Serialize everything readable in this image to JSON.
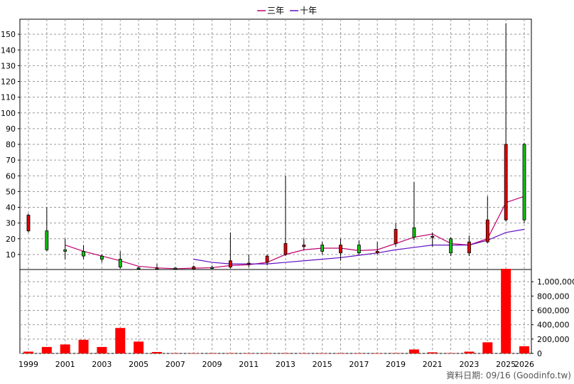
{
  "chart_data": {
    "type": "candlestick",
    "legend": [
      {
        "name": "三年",
        "color": "#c0006f"
      },
      {
        "name": "十年",
        "color": "#6010c0"
      }
    ],
    "legend_placement": "top-center",
    "price_axis": {
      "ticks": [
        10,
        20,
        30,
        40,
        50,
        60,
        70,
        80,
        90,
        100,
        110,
        120,
        130,
        140,
        150
      ],
      "range": [
        0,
        160
      ]
    },
    "volume_axis": {
      "ticks": [
        0,
        200000,
        400000,
        600000,
        800000,
        1000000
      ],
      "tick_labels": [
        "0",
        "200,000",
        "400,000",
        "600,000",
        "800,000",
        "1,000,000"
      ],
      "range": [
        0,
        1180000
      ]
    },
    "x_labels": [
      "1999",
      "2001",
      "2003",
      "2005",
      "2007",
      "2009",
      "2011",
      "2013",
      "2015",
      "2017",
      "2019",
      "2021",
      "2023",
      "2025",
      "2026"
    ],
    "grid": true,
    "candles": [
      {
        "year": 1999,
        "open": 25,
        "close": 35,
        "high": 36,
        "low": 24
      },
      {
        "year": 2000,
        "open": 25,
        "close": 13,
        "high": 40,
        "low": 12
      },
      {
        "year": 2001,
        "open": 13,
        "close": 12,
        "high": 20,
        "low": 7
      },
      {
        "year": 2002,
        "open": 12,
        "close": 9,
        "high": 16,
        "low": 7
      },
      {
        "year": 2003,
        "open": 9,
        "close": 7,
        "high": 10,
        "low": 5
      },
      {
        "year": 2004,
        "open": 7,
        "close": 2,
        "high": 12,
        "low": 1
      },
      {
        "year": 2005,
        "open": 1.5,
        "close": 1,
        "high": 2,
        "low": 0.5
      },
      {
        "year": 2006,
        "open": 0.8,
        "close": 1.4,
        "high": 4,
        "low": 0.3
      },
      {
        "year": 2007,
        "open": 1.4,
        "close": 0.9,
        "high": 2,
        "low": 0.3
      },
      {
        "year": 2008,
        "open": 0.9,
        "close": 2.2,
        "high": 3,
        "low": 0.3
      },
      {
        "year": 2009,
        "open": 1.8,
        "close": 1.5,
        "high": 3,
        "low": 0.5
      },
      {
        "year": 2010,
        "open": 2,
        "close": 6,
        "high": 24,
        "low": 1
      },
      {
        "year": 2011,
        "open": 4,
        "close": 4.5,
        "high": 10,
        "low": 2
      },
      {
        "year": 2012,
        "open": 5,
        "close": 9,
        "high": 10,
        "low": 3
      },
      {
        "year": 2013,
        "open": 10,
        "close": 17,
        "high": 60,
        "low": 9
      },
      {
        "year": 2014,
        "open": 15,
        "close": 16,
        "high": 20,
        "low": 13
      },
      {
        "year": 2015,
        "open": 16,
        "close": 12,
        "high": 18,
        "low": 10
      },
      {
        "year": 2016,
        "open": 11,
        "close": 16,
        "high": 20,
        "low": 6
      },
      {
        "year": 2017,
        "open": 16,
        "close": 11,
        "high": 19,
        "low": 10
      },
      {
        "year": 2018,
        "open": 11,
        "close": 12,
        "high": 18,
        "low": 10
      },
      {
        "year": 2019,
        "open": 17,
        "close": 26,
        "high": 30,
        "low": 15
      },
      {
        "year": 2020,
        "open": 27,
        "close": 21,
        "high": 56,
        "low": 19
      },
      {
        "year": 2021,
        "open": 21,
        "close": 21.5,
        "high": 24,
        "low": 15
      },
      {
        "year": 2022,
        "open": 20,
        "close": 11,
        "high": 21,
        "low": 9
      },
      {
        "year": 2023,
        "open": 11,
        "close": 18,
        "high": 22,
        "low": 9
      },
      {
        "year": 2024,
        "open": 18,
        "close": 32,
        "high": 47,
        "low": 17
      },
      {
        "year": 2025,
        "open": 32,
        "close": 80,
        "high": 157,
        "low": 31
      },
      {
        "year": 2026,
        "open": 80,
        "close": 32,
        "high": 81,
        "low": 30
      }
    ],
    "series": [
      {
        "name": "三年",
        "points": [
          [
            2001,
            16
          ],
          [
            2002,
            12
          ],
          [
            2003,
            9
          ],
          [
            2004,
            6
          ],
          [
            2005,
            2.5
          ],
          [
            2006,
            1.5
          ],
          [
            2007,
            1
          ],
          [
            2008,
            1.3
          ],
          [
            2009,
            1.6
          ],
          [
            2010,
            3
          ],
          [
            2011,
            3.5
          ],
          [
            2012,
            5
          ],
          [
            2013,
            10
          ],
          [
            2014,
            13
          ],
          [
            2015,
            14
          ],
          [
            2016,
            14
          ],
          [
            2017,
            12.5
          ],
          [
            2018,
            13
          ],
          [
            2019,
            17
          ],
          [
            2020,
            21
          ],
          [
            2021,
            23
          ],
          [
            2022,
            17
          ],
          [
            2023,
            16
          ],
          [
            2024,
            20
          ],
          [
            2025,
            43
          ],
          [
            2026,
            47
          ]
        ]
      },
      {
        "name": "十年",
        "points": [
          [
            2008,
            7
          ],
          [
            2009,
            5
          ],
          [
            2010,
            4
          ],
          [
            2011,
            4
          ],
          [
            2012,
            4
          ],
          [
            2013,
            5
          ],
          [
            2014,
            6
          ],
          [
            2015,
            7
          ],
          [
            2016,
            8
          ],
          [
            2017,
            9.5
          ],
          [
            2018,
            11
          ],
          [
            2019,
            13
          ],
          [
            2020,
            14.5
          ],
          [
            2021,
            16
          ],
          [
            2022,
            16
          ],
          [
            2023,
            16
          ],
          [
            2024,
            19
          ],
          [
            2025,
            24
          ],
          [
            2026,
            26
          ]
        ]
      }
    ],
    "volume": [
      {
        "year": 1999,
        "value": 25000
      },
      {
        "year": 2000,
        "value": 90000
      },
      {
        "year": 2001,
        "value": 125000
      },
      {
        "year": 2002,
        "value": 190000
      },
      {
        "year": 2003,
        "value": 90000
      },
      {
        "year": 2004,
        "value": 355000
      },
      {
        "year": 2005,
        "value": 165000
      },
      {
        "year": 2006,
        "value": 20000
      },
      {
        "year": 2007,
        "value": 2000
      },
      {
        "year": 2008,
        "value": 1000
      },
      {
        "year": 2009,
        "value": 1000
      },
      {
        "year": 2010,
        "value": 4000
      },
      {
        "year": 2011,
        "value": 1000
      },
      {
        "year": 2012,
        "value": 1000
      },
      {
        "year": 2013,
        "value": 1000
      },
      {
        "year": 2014,
        "value": 1000
      },
      {
        "year": 2015,
        "value": 1000
      },
      {
        "year": 2016,
        "value": 1000
      },
      {
        "year": 2017,
        "value": 1000
      },
      {
        "year": 2018,
        "value": 1000
      },
      {
        "year": 2019,
        "value": 5000
      },
      {
        "year": 2020,
        "value": 55000
      },
      {
        "year": 2021,
        "value": 15000
      },
      {
        "year": 2022,
        "value": 5000
      },
      {
        "year": 2023,
        "value": 25000
      },
      {
        "year": 2024,
        "value": 155000
      },
      {
        "year": 2025,
        "value": 1180000
      },
      {
        "year": 2026,
        "value": 100000
      }
    ],
    "colors": {
      "up": "#e00000",
      "down": "#10c010",
      "volume": "#ff0000",
      "grid": "#999999"
    },
    "footer": "資料日期: 09/16  (Goodinfo.tw)"
  }
}
